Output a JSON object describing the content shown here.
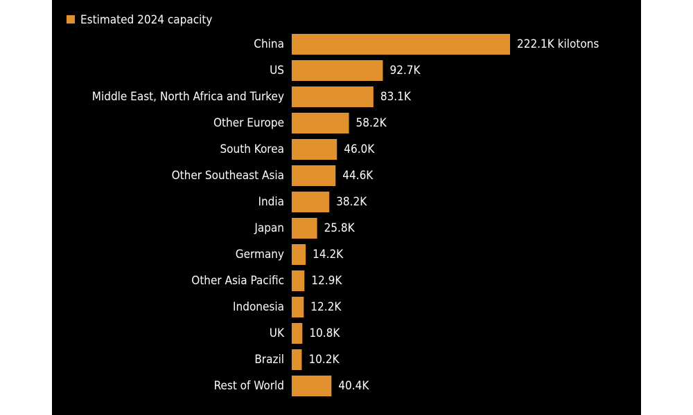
{
  "chart_data": {
    "type": "bar",
    "orientation": "horizontal",
    "categories": [
      "China",
      "US",
      "Middle East, North Africa and Turkey",
      "Other Europe",
      "South Korea",
      "Other Southeast Asia",
      "India",
      "Japan",
      "Germany",
      "Other Asia Pacific",
      "Indonesia",
      "UK",
      "Brazil",
      "Rest of World"
    ],
    "series": [
      {
        "name": "Estimated 2024 capacity",
        "color": "#e0902c",
        "values": [
          222.1,
          92.7,
          83.1,
          58.2,
          46.0,
          44.6,
          38.2,
          25.8,
          14.2,
          12.9,
          12.2,
          10.8,
          10.2,
          40.4
        ],
        "value_labels": [
          "222.1K kilotons",
          "92.7K",
          "83.1K",
          "58.2K",
          "46.0K",
          "44.6K",
          "38.2K",
          "25.8K",
          "14.2K",
          "12.9K",
          "12.2K",
          "10.8K",
          "10.2K",
          "40.4K"
        ]
      }
    ]
  }
}
